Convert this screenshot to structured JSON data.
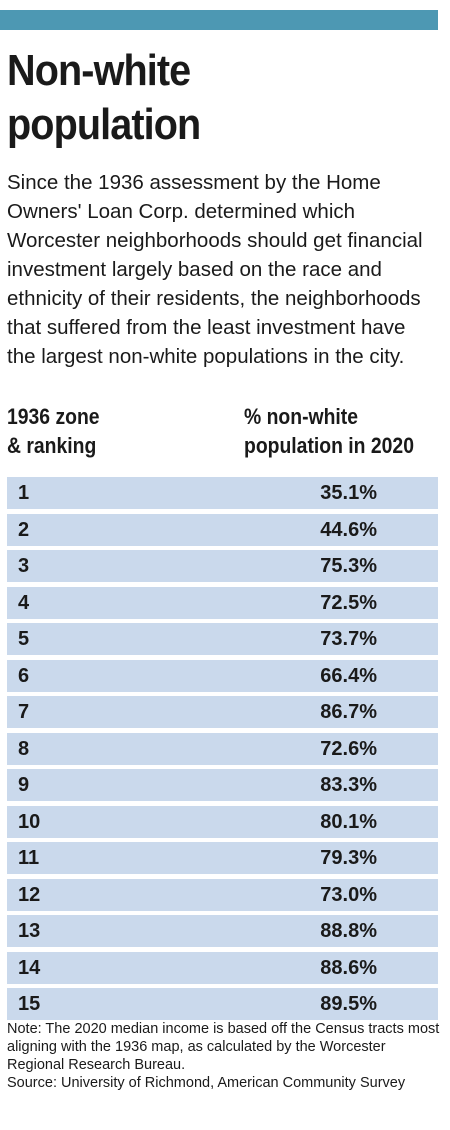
{
  "header": {
    "title_line1": "Non-white",
    "title_line2": "population",
    "intro": "Since the 1936 assessment by the Home Owners' Loan Corp. determined which Worcester neighborhoods should get financial investment largely based on the race and ethnicity of their residents, the neighborhoods that suffered from the least investment have the largest non-white populations in the city."
  },
  "columns": {
    "left_line1": "1936 zone",
    "left_line2": "& ranking",
    "right_line1": "% non-white",
    "right_line2": "population in 2020"
  },
  "chart_data": {
    "type": "table",
    "title": "Non-white population",
    "columns": [
      "1936 zone & ranking",
      "% non-white population in 2020"
    ],
    "rows": [
      {
        "zone": "1",
        "value": "35.1%"
      },
      {
        "zone": "2",
        "value": "44.6%"
      },
      {
        "zone": "3",
        "value": "75.3%"
      },
      {
        "zone": "4",
        "value": "72.5%"
      },
      {
        "zone": "5",
        "value": "73.7%"
      },
      {
        "zone": "6",
        "value": "66.4%"
      },
      {
        "zone": "7",
        "value": "86.7%"
      },
      {
        "zone": "8",
        "value": "72.6%"
      },
      {
        "zone": "9",
        "value": "83.3%"
      },
      {
        "zone": "10",
        "value": "80.1%"
      },
      {
        "zone": "11",
        "value": "79.3%"
      },
      {
        "zone": "12",
        "value": "73.0%"
      },
      {
        "zone": "13",
        "value": "88.8%"
      },
      {
        "zone": "14",
        "value": "88.6%"
      },
      {
        "zone": "15",
        "value": "89.5%"
      }
    ]
  },
  "footer": {
    "note": "Note: The 2020 median income is based off the Census tracts most aligning with the 1936 map, as calculated by the Worcester Regional Research Bureau.",
    "source": "Source: University of Richmond, American Community Survey"
  },
  "colors": {
    "accent_bar": "#4d98b3",
    "row_fill": "#cad9ec",
    "text": "#1a1a1a"
  }
}
